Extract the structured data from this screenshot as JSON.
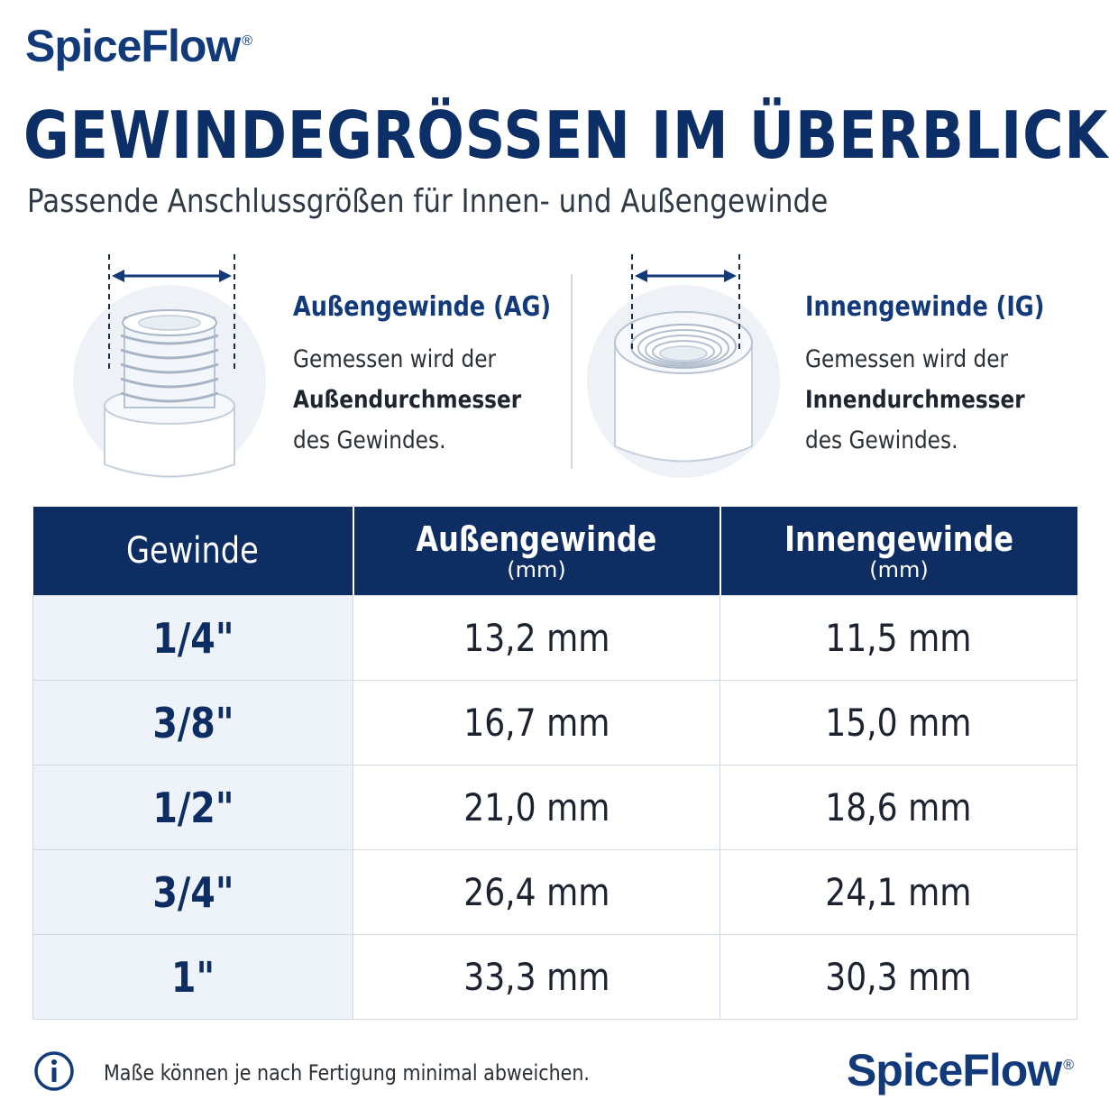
{
  "brand": {
    "name": "SpiceFlow",
    "mark": "®"
  },
  "header": {
    "title": "GEWINDEGRÖSSEN IM ÜBERBLICK",
    "subtitle": "Passende Anschlussgrößen für Innen- und Außengewinde"
  },
  "info": {
    "outer": {
      "title": "Außengewinde (AG)",
      "line1": "Gemessen wird der",
      "line2": "Außendurchmesser",
      "line3": "des Gewindes.",
      "icon": "external-thread-icon"
    },
    "inner": {
      "title": "Innengewinde (IG)",
      "line1": "Gemessen wird der",
      "line2": "Innendurchmesser",
      "line3": "des Gewindes.",
      "icon": "internal-thread-icon"
    }
  },
  "table": {
    "headers": {
      "size": "Gewinde",
      "outer": "Außengewinde",
      "outer_unit": "(mm)",
      "inner": "Innengewinde",
      "inner_unit": "(mm)"
    },
    "rows": [
      {
        "size": "1/4\"",
        "outer": "13,2 mm",
        "inner": "11,5 mm"
      },
      {
        "size": "3/8\"",
        "outer": "16,7 mm",
        "inner": "15,0 mm"
      },
      {
        "size": "1/2\"",
        "outer": "21,0 mm",
        "inner": "18,6 mm"
      },
      {
        "size": "3/4\"",
        "outer": "26,4 mm",
        "inner": "24,1 mm"
      },
      {
        "size": "1\"",
        "outer": "33,3 mm",
        "inner": "30,3 mm"
      }
    ]
  },
  "footer": {
    "note": "Maße können je nach Fertigung minimal abweichen.",
    "icon": "info-icon"
  },
  "colors": {
    "navy": "#0e2d63",
    "row_tint": "#eef3fa",
    "text": "#1d2230"
  }
}
